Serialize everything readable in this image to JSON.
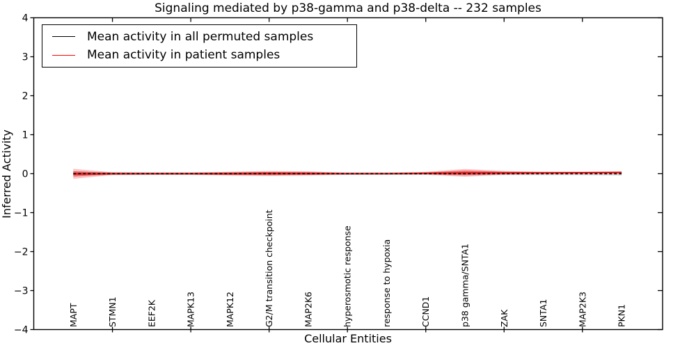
{
  "figure": {
    "title": "Signaling mediated by p38-gamma and p38-delta -- 232 samples",
    "xlabel": "Cellular Entities",
    "ylabel": "Inferred Activity"
  },
  "legend": {
    "items": [
      {
        "label": "Mean activity in all permuted samples",
        "color": "#000000"
      },
      {
        "label": "Mean activity in patient samples",
        "color": "#ff0000"
      }
    ]
  },
  "chart_data": {
    "type": "line",
    "title": "Signaling mediated by p38-gamma and p38-delta -- 232 samples",
    "xlabel": "Cellular Entities",
    "ylabel": "Inferred Activity",
    "ylim": [
      -4,
      4
    ],
    "xlim_category_index": [
      -1,
      15
    ],
    "ytick_values": [
      4,
      3,
      2,
      1,
      0,
      -1,
      -2,
      -3,
      -4
    ],
    "ytick_labels": [
      "4",
      "3",
      "2",
      "1",
      "0",
      "−1",
      "−2",
      "−3",
      "−4"
    ],
    "xtick_mark_indices": [
      1,
      3,
      5,
      7,
      9,
      11,
      13
    ],
    "grid": false,
    "legend_position": "upper left",
    "categories": [
      "MAPT",
      "STMN1",
      "EEF2K",
      "MAPK13",
      "MAPK12",
      "G2/M transition checkpoint",
      "MAP2K6",
      "hyperosmotic response",
      "response to hypoxia",
      "CCND1",
      "p38 gamma/SNTA1",
      "ZAK",
      "SNTA1",
      "MAP2K3",
      "PKN1"
    ],
    "series": [
      {
        "name": "Mean activity in all permuted samples",
        "style": "dashed",
        "color": "#000000",
        "values": [
          0,
          0,
          0,
          0,
          0,
          0,
          0,
          0,
          0,
          0,
          0,
          0,
          0,
          0,
          0
        ],
        "band_halfwidth": [
          0.05,
          0.035,
          0.03,
          0.03,
          0.035,
          0.04,
          0.035,
          0.03,
          0.03,
          0.03,
          0.04,
          0.035,
          0.035,
          0.035,
          0.045
        ],
        "band_color": "rgba(150,150,150,0.45)"
      },
      {
        "name": "Mean activity in patient samples",
        "style": "solid",
        "color": "#f01515",
        "values": [
          -0.005,
          0,
          0,
          0,
          0,
          0.005,
          0.005,
          0,
          0,
          0.01,
          0.02,
          0.02,
          0.02,
          0.025,
          0.03
        ],
        "band_outer_halfwidth": [
          0.13,
          0.035,
          0.03,
          0.03,
          0.05,
          0.065,
          0.055,
          0.022,
          0.018,
          0.036,
          0.1,
          0.05,
          0.03,
          0.024,
          0.03
        ],
        "band_outer_color": "rgba(240,90,90,0.35)",
        "band_inner_halfwidth": [
          0.07,
          0.02,
          0.018,
          0.018,
          0.03,
          0.04,
          0.032,
          0.013,
          0.011,
          0.022,
          0.06,
          0.03,
          0.018,
          0.014,
          0.018
        ],
        "band_inner_color": "rgba(230,40,40,0.5)"
      }
    ]
  }
}
